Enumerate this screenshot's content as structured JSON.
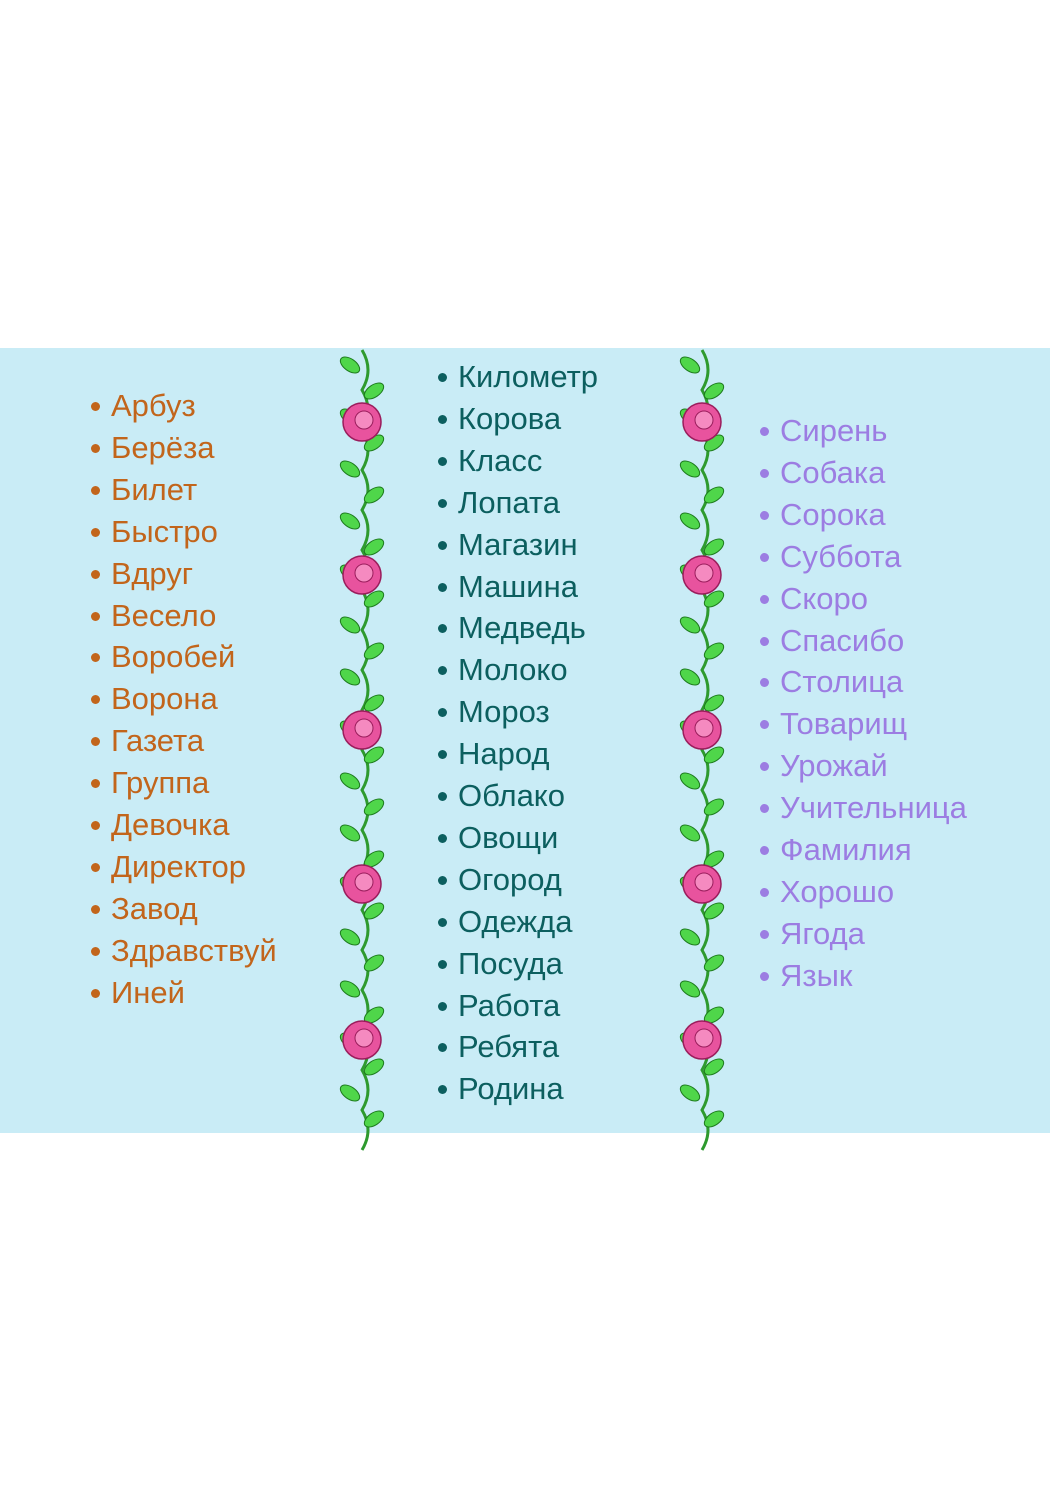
{
  "columns": [
    {
      "items": [
        "Арбуз",
        "Берёза",
        "Билет",
        "Быстро",
        "Вдруг",
        "Весело",
        "Воробей",
        "Ворона",
        "Газета",
        "Группа",
        "Девочка",
        "Директор",
        "Завод",
        "Здравствуй",
        "Иней"
      ]
    },
    {
      "items": [
        "Километр",
        "Корова",
        "Класс",
        "Лопата",
        "Магазин",
        "Машина",
        "Медведь",
        "Молоко",
        "Мороз",
        "Народ",
        "Облако",
        "Овощи",
        "Огород",
        "Одежда",
        "Посуда",
        "Работа",
        "Ребята",
        "Родина"
      ]
    },
    {
      "items": [
        "Сирень",
        "Собака",
        "Сорока",
        "Суббота",
        "Скоро",
        "Спасибо",
        "Столица",
        "Товарищ",
        "Урожай",
        "Учительница",
        "Фамилия",
        "Хорошо",
        "Ягода",
        "Язык"
      ]
    }
  ]
}
